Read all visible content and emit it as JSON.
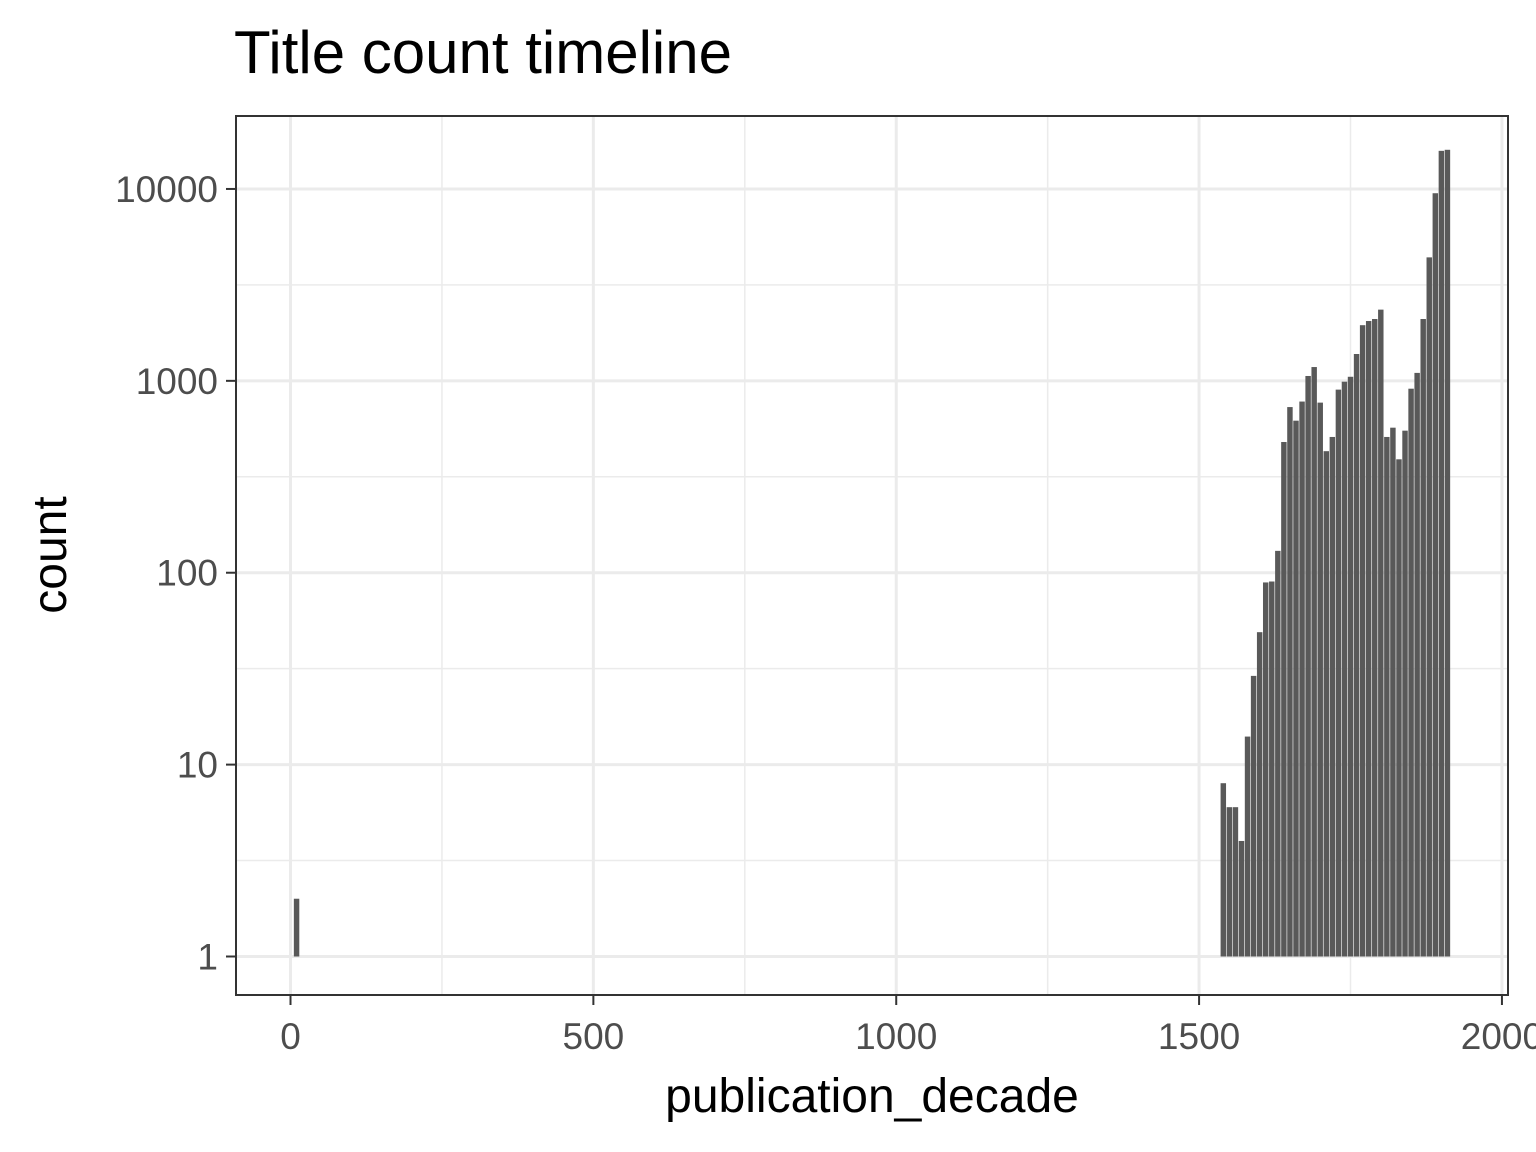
{
  "chart_data": {
    "type": "bar",
    "title": "Title count timeline",
    "xlabel": "publication_decade",
    "ylabel": "count",
    "x_scale": "linear",
    "y_scale": "log10",
    "xlim": [
      -90,
      2010
    ],
    "ylim": [
      0.63,
      24000
    ],
    "x_ticks": [
      0,
      500,
      1000,
      1500,
      2000
    ],
    "x_tick_labels": [
      "0",
      "500",
      "1000",
      "1500",
      "2000"
    ],
    "y_ticks": [
      1,
      10,
      100,
      1000,
      10000
    ],
    "y_tick_labels": [
      "1",
      "10",
      "100",
      "1000",
      "10000"
    ],
    "grid": true,
    "legend": "none",
    "bar_color": "#595959",
    "bars": [
      {
        "x": 10,
        "value": 2
      },
      {
        "x": 1540,
        "value": 8
      },
      {
        "x": 1550,
        "value": 6
      },
      {
        "x": 1560,
        "value": 6
      },
      {
        "x": 1570,
        "value": 4
      },
      {
        "x": 1580,
        "value": 14
      },
      {
        "x": 1590,
        "value": 29
      },
      {
        "x": 1600,
        "value": 49
      },
      {
        "x": 1610,
        "value": 89
      },
      {
        "x": 1620,
        "value": 90
      },
      {
        "x": 1630,
        "value": 130
      },
      {
        "x": 1640,
        "value": 480
      },
      {
        "x": 1650,
        "value": 730
      },
      {
        "x": 1660,
        "value": 620
      },
      {
        "x": 1670,
        "value": 780
      },
      {
        "x": 1680,
        "value": 1060
      },
      {
        "x": 1690,
        "value": 1180
      },
      {
        "x": 1700,
        "value": 770
      },
      {
        "x": 1710,
        "value": 430
      },
      {
        "x": 1720,
        "value": 510
      },
      {
        "x": 1730,
        "value": 900
      },
      {
        "x": 1740,
        "value": 990
      },
      {
        "x": 1750,
        "value": 1050
      },
      {
        "x": 1760,
        "value": 1380
      },
      {
        "x": 1770,
        "value": 1950
      },
      {
        "x": 1780,
        "value": 2050
      },
      {
        "x": 1790,
        "value": 2100
      },
      {
        "x": 1800,
        "value": 2350
      },
      {
        "x": 1810,
        "value": 510
      },
      {
        "x": 1820,
        "value": 570
      },
      {
        "x": 1830,
        "value": 390
      },
      {
        "x": 1840,
        "value": 550
      },
      {
        "x": 1850,
        "value": 910
      },
      {
        "x": 1860,
        "value": 1100
      },
      {
        "x": 1870,
        "value": 2100
      },
      {
        "x": 1880,
        "value": 4400
      },
      {
        "x": 1890,
        "value": 9500
      },
      {
        "x": 1900,
        "value": 15800
      },
      {
        "x": 1910,
        "value": 16000
      }
    ]
  }
}
